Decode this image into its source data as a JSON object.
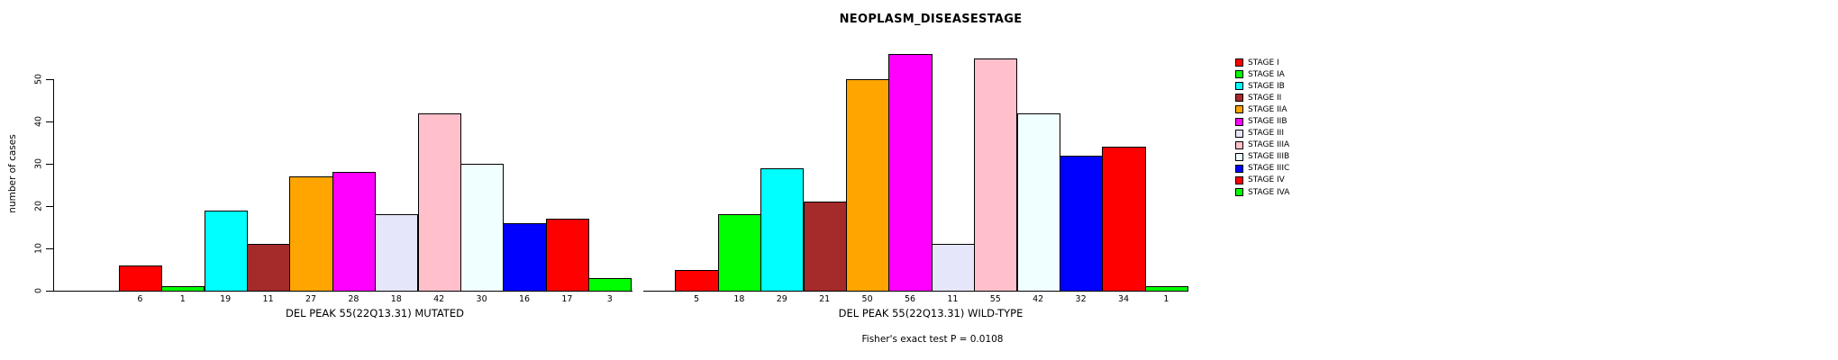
{
  "chart_data": {
    "type": "bar",
    "title": "NEOPLASM_DISEASESTAGE",
    "ylabel": "number of cases",
    "yticks": [
      0,
      10,
      20,
      30,
      40,
      50
    ],
    "ylim": [
      0,
      58
    ],
    "grid": false,
    "legend_position": "right",
    "categories": [
      "STAGE I",
      "STAGE IA",
      "STAGE IB",
      "STAGE II",
      "STAGE IIA",
      "STAGE IIB",
      "STAGE III",
      "STAGE IIIA",
      "STAGE IIIB",
      "STAGE IIIC",
      "STAGE IV",
      "STAGE IVA"
    ],
    "legend": [
      {
        "label": "STAGE I",
        "color": "#FF0000"
      },
      {
        "label": "STAGE IA",
        "color": "#00FF00"
      },
      {
        "label": "STAGE IB",
        "color": "#00FFFF"
      },
      {
        "label": "STAGE II",
        "color": "#A52A2A"
      },
      {
        "label": "STAGE IIA",
        "color": "#FFA500"
      },
      {
        "label": "STAGE IIB",
        "color": "#FF00FF"
      },
      {
        "label": "STAGE III",
        "color": "#E6E6FA"
      },
      {
        "label": "STAGE IIIA",
        "color": "#FFC0CB"
      },
      {
        "label": "STAGE IIIB",
        "color": "#F0FFFF"
      },
      {
        "label": "STAGE IIIC",
        "color": "#0000FF"
      },
      {
        "label": "STAGE IV",
        "color": "#FF0000"
      },
      {
        "label": "STAGE IVA",
        "color": "#00FF00"
      }
    ],
    "panels": [
      {
        "name": "mutated",
        "xlabel": "DEL PEAK 55(22Q13.31) MUTATED",
        "values": [
          6,
          1,
          19,
          11,
          27,
          28,
          18,
          42,
          30,
          16,
          17,
          3
        ]
      },
      {
        "name": "wild-type",
        "xlabel": "DEL PEAK 55(22Q13.31) WILD-TYPE",
        "values": [
          5,
          18,
          29,
          21,
          50,
          56,
          11,
          55,
          42,
          32,
          34,
          1
        ]
      }
    ],
    "annotation": "Fisher's exact test P = 0.0108"
  }
}
